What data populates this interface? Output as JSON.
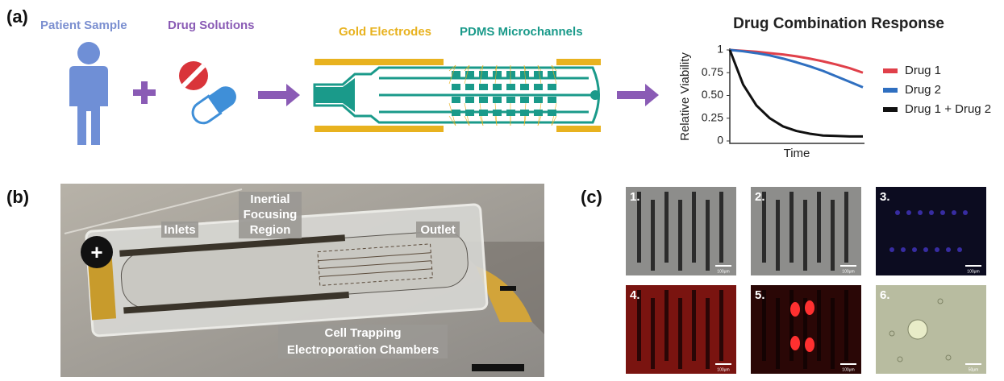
{
  "panels": {
    "a": {
      "label": "(a)",
      "patient": "Patient Sample",
      "drugs": "Drug Solutions",
      "electrodes": "Gold Electrodes",
      "channels": "PDMS Microchannels"
    },
    "b": {
      "label": "(b)",
      "plus": "+",
      "inlets": "Inlets",
      "focusing": [
        "Inertial",
        "Focusing",
        "Region"
      ],
      "outlet": "Outlet",
      "trapping": [
        "Cell Trapping",
        "Electroporation Chambers"
      ]
    },
    "c": {
      "label": "(c)",
      "tiles": [
        {
          "label": "1.",
          "scale": "100μm"
        },
        {
          "label": "2.",
          "scale": "100μm"
        },
        {
          "label": "3.",
          "scale": "100μm"
        },
        {
          "label": "4.",
          "scale": "100μm"
        },
        {
          "label": "5.",
          "scale": "100μm"
        },
        {
          "label": "6.",
          "scale": "50μm"
        }
      ]
    }
  },
  "chart_data": {
    "type": "line",
    "title": "Drug Combination Response",
    "ylabel": "Relative Viability",
    "xlabel": "Time",
    "categories": [
      null,
      null,
      null,
      null,
      null,
      null,
      null,
      null,
      null,
      null,
      null
    ],
    "series": [
      {
        "name": "Drug 1",
        "color": "#e0404a",
        "values": [
          1,
          0.99,
          0.98,
          0.965,
          0.95,
          0.93,
          0.905,
          0.875,
          0.84,
          0.8,
          0.75
        ]
      },
      {
        "name": "Drug 2",
        "color": "#2f6fc0",
        "values": [
          1,
          0.985,
          0.965,
          0.94,
          0.905,
          0.865,
          0.82,
          0.77,
          0.71,
          0.65,
          0.59
        ]
      },
      {
        "name": "Drug 1 + Drug 2",
        "color": "#111111",
        "values": [
          1,
          0.62,
          0.39,
          0.25,
          0.16,
          0.11,
          0.08,
          0.06,
          0.055,
          0.05,
          0.05
        ]
      }
    ],
    "ylim": [
      0,
      1
    ],
    "yticks": [
      0,
      0.25,
      {
        "value": 0.5,
        "label": "0.50"
      },
      0.75,
      1
    ],
    "grid": false,
    "legend": "right"
  }
}
